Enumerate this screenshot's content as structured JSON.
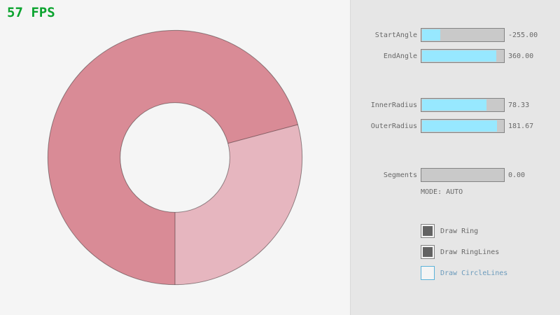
{
  "fps": "57 FPS",
  "colors": {
    "window_bg": "#f5f5f5",
    "panel_bg": "#e6e6e6",
    "divider": "#d9d9d9",
    "accent_fill": "#97e8ff",
    "track": "#c9c9c9",
    "border": "#838383",
    "text": "#686868",
    "check": "#636363",
    "focus_border": "#5bb2d9",
    "focus_text": "#6c9bbc",
    "fps": "#0aa32e"
  },
  "ring": {
    "start_angle": -255,
    "end_angle": 360,
    "inner_radius": 78.33,
    "outer_radius": 181.67,
    "segments": 0,
    "color_single": "#e6b6bf",
    "color_overlap": "#d98b96",
    "color_line": "rgba(0,0,0,0.4)",
    "color_hole": "#f5f5f5"
  },
  "panel": {
    "sliders": [
      {
        "label": "StartAngle",
        "value": "-255.00",
        "fill_pct": 21.7
      },
      {
        "label": "EndAngle",
        "value": "360.00",
        "fill_pct": 90.0
      },
      {
        "label": "InnerRadius",
        "value": "78.33",
        "fill_pct": 78.3
      },
      {
        "label": "OuterRadius",
        "value": "181.67",
        "fill_pct": 90.8
      },
      {
        "label": "Segments",
        "value": "0.00",
        "fill_pct": 0
      }
    ],
    "mode": "MODE: AUTO",
    "checkboxes": [
      {
        "label": "Draw Ring",
        "checked": true,
        "focused": false
      },
      {
        "label": "Draw RingLines",
        "checked": true,
        "focused": false
      },
      {
        "label": "Draw CircleLines",
        "checked": false,
        "focused": true
      }
    ]
  }
}
